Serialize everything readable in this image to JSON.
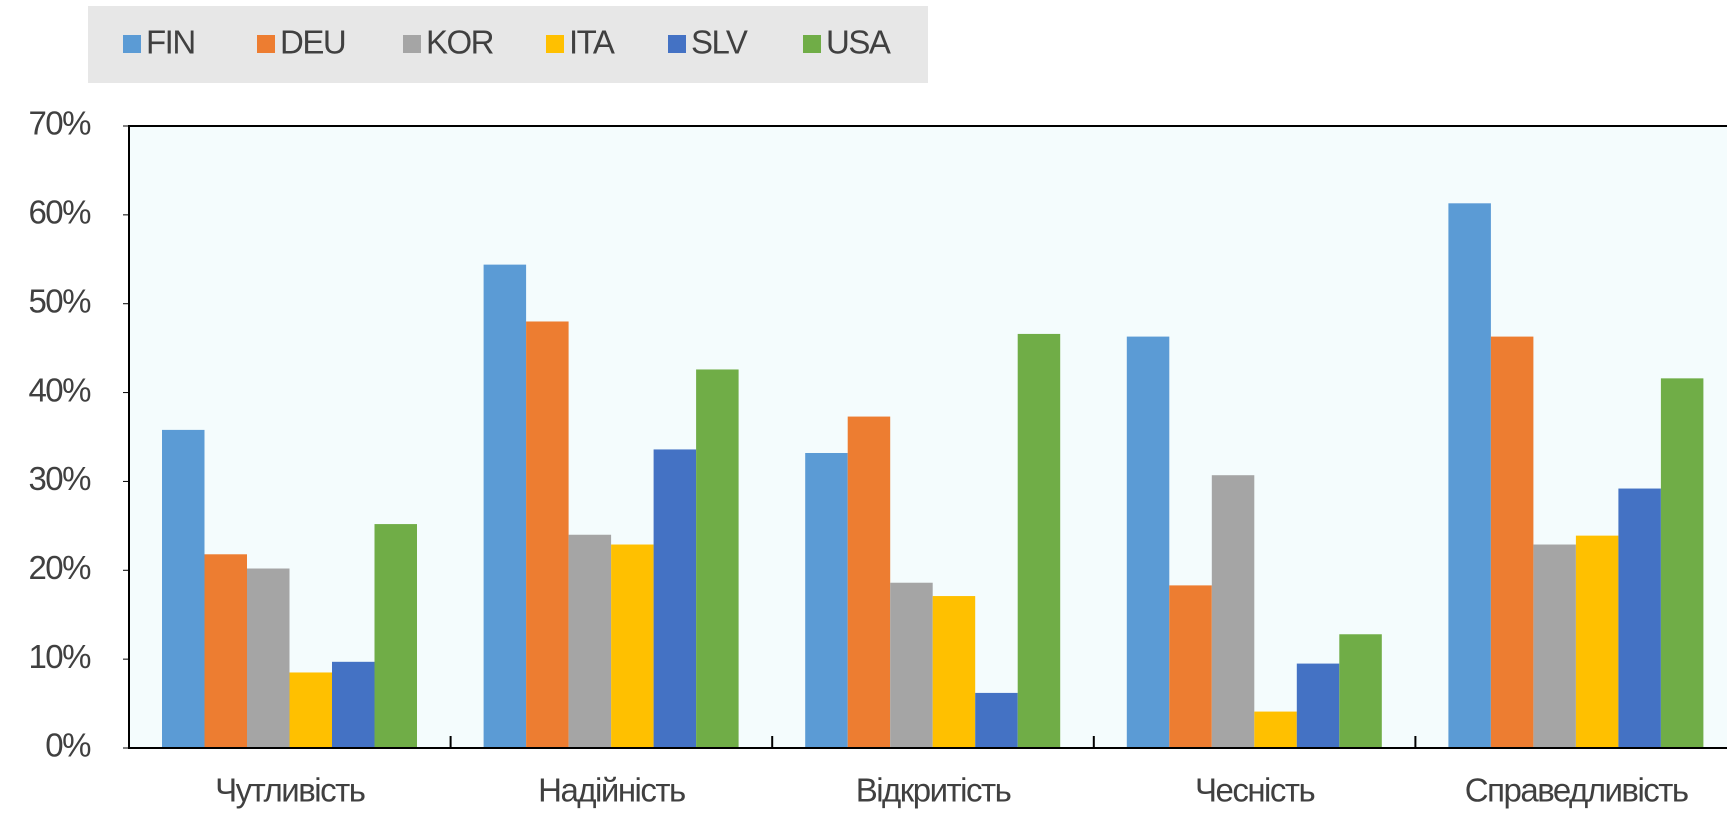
{
  "chart_data": {
    "type": "bar",
    "categories": [
      "Чутливість",
      "Надійність",
      "Відкритість",
      "Чесність",
      "Справедливість"
    ],
    "series": [
      {
        "name": "FIN",
        "color": "#5b9bd5",
        "values": [
          35.8,
          54.4,
          33.2,
          46.3,
          61.3
        ]
      },
      {
        "name": "DEU",
        "color": "#ed7d31",
        "values": [
          21.8,
          48.0,
          37.3,
          18.3,
          46.3
        ]
      },
      {
        "name": "KOR",
        "color": "#a5a5a5",
        "values": [
          20.2,
          24.0,
          18.6,
          30.7,
          22.9
        ]
      },
      {
        "name": "ITA",
        "color": "#ffc000",
        "values": [
          8.5,
          22.9,
          17.1,
          4.1,
          23.9
        ]
      },
      {
        "name": "SLV",
        "color": "#4472c4",
        "values": [
          9.7,
          33.6,
          6.2,
          9.5,
          29.2
        ]
      },
      {
        "name": "USA",
        "color": "#70ad47",
        "values": [
          25.2,
          42.6,
          46.6,
          12.8,
          41.6
        ]
      }
    ],
    "ylim": [
      0,
      70
    ],
    "yticks": [
      {
        "value": 0,
        "label": "0%"
      },
      {
        "value": 10,
        "label": "10%"
      },
      {
        "value": 20,
        "label": "20%"
      },
      {
        "value": 30,
        "label": "30%"
      },
      {
        "value": 40,
        "label": "40%"
      },
      {
        "value": 50,
        "label": "50%"
      },
      {
        "value": 60,
        "label": "60%"
      },
      {
        "value": 70,
        "label": "70%"
      }
    ],
    "legend": "top-left"
  }
}
